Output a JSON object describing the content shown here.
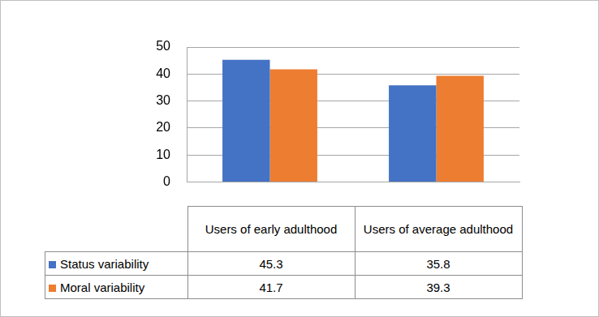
{
  "chart_data": {
    "type": "bar",
    "categories": [
      "Users of early adulthood",
      "Users of average adulthood"
    ],
    "series": [
      {
        "name": "Status variability",
        "color": "#4472c4",
        "values": [
          45.3,
          35.8
        ]
      },
      {
        "name": "Moral variability",
        "color": "#ed7d31",
        "values": [
          41.7,
          39.3
        ]
      }
    ],
    "ylim": [
      0,
      50
    ],
    "yticks": [
      0,
      10,
      20,
      30,
      40,
      50
    ],
    "grid": true
  }
}
